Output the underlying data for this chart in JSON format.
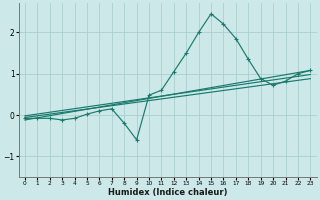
{
  "xlabel": "Humidex (Indice chaleur)",
  "ylabel": "",
  "bg_color": "#cce8e8",
  "grid_color": "#aacfcf",
  "line_color": "#1a7a6e",
  "xlim": [
    -0.5,
    23.5
  ],
  "ylim": [
    -1.5,
    2.7
  ],
  "yticks": [
    -1,
    0,
    1,
    2
  ],
  "xticks": [
    0,
    1,
    2,
    3,
    4,
    5,
    6,
    7,
    8,
    9,
    10,
    11,
    12,
    13,
    14,
    15,
    16,
    17,
    18,
    19,
    20,
    21,
    22,
    23
  ],
  "series": [
    [
      0,
      -0.08
    ],
    [
      1,
      -0.08
    ],
    [
      2,
      -0.08
    ],
    [
      3,
      -0.12
    ],
    [
      4,
      -0.08
    ],
    [
      5,
      0.02
    ],
    [
      6,
      0.1
    ],
    [
      7,
      0.15
    ],
    [
      8,
      -0.2
    ],
    [
      9,
      -0.6
    ],
    [
      10,
      0.48
    ],
    [
      11,
      0.6
    ],
    [
      12,
      1.05
    ],
    [
      13,
      1.5
    ],
    [
      14,
      2.0
    ],
    [
      15,
      2.45
    ],
    [
      16,
      2.2
    ],
    [
      17,
      1.85
    ],
    [
      18,
      1.35
    ],
    [
      19,
      0.88
    ],
    [
      20,
      0.72
    ],
    [
      21,
      0.82
    ],
    [
      22,
      1.0
    ],
    [
      23,
      1.08
    ]
  ],
  "linear_series": [
    [
      0,
      -0.12
    ],
    [
      23,
      1.08
    ]
  ],
  "linear_series2": [
    [
      0,
      -0.06
    ],
    [
      23,
      0.88
    ]
  ],
  "linear_series3": [
    [
      0,
      -0.02
    ],
    [
      23,
      0.98
    ]
  ]
}
